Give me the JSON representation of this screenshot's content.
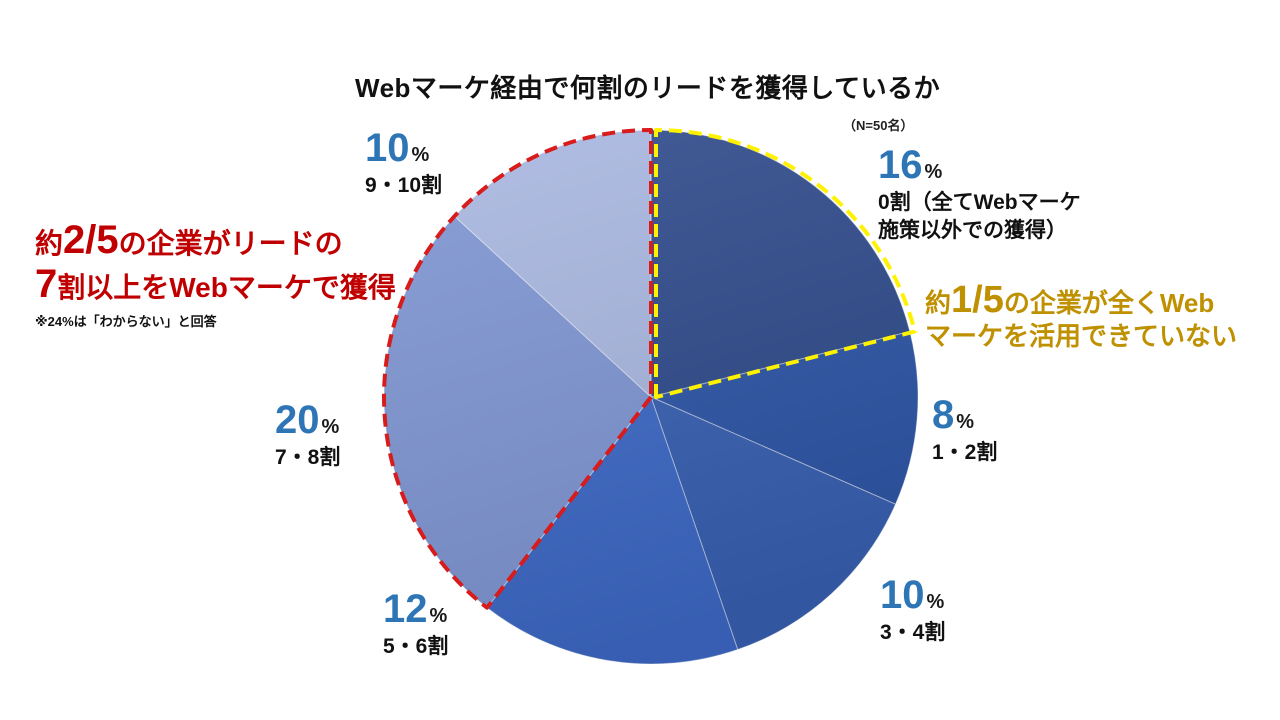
{
  "chart_data": {
    "type": "pie",
    "title": "Webマーケ経由で何割のリードを獲得しているか",
    "note": "（N=50名）",
    "unit": "%",
    "label_color": "#2E75B6",
    "slices": [
      {
        "label_lines": [
          "0割（全てWebマーケ",
          "施策以外での獲得）"
        ],
        "value": 16,
        "color": "#2F4B8C"
      },
      {
        "label_lines": [
          "1・2割"
        ],
        "value": 8,
        "color": "#2D55A6"
      },
      {
        "label_lines": [
          "3・4割"
        ],
        "value": 10,
        "color": "#3960B3"
      },
      {
        "label_lines": [
          "5・6割"
        ],
        "value": 12,
        "color": "#3D69C6"
      },
      {
        "label_lines": [
          "7・8割"
        ],
        "value": 20,
        "color": "#7F96D3"
      },
      {
        "label_lines": [
          "9・10割"
        ],
        "value": 10,
        "color": "#A9B7E0"
      }
    ],
    "highlights": [
      {
        "slices": [
          4,
          5
        ],
        "color": "#D81B1B"
      },
      {
        "slices": [
          0
        ],
        "color": "#FFF200"
      }
    ],
    "annotations": {
      "majority": {
        "color": "#C00000",
        "line1": {
          "pre": "約",
          "big": "2/5",
          "post": "の企業がリードの"
        },
        "line2": {
          "big": "7",
          "post": "割以上をWebマーケで獲得"
        },
        "footnote": "※24%は「わからない」と回答"
      },
      "none": {
        "color": "#BF9000",
        "line1": {
          "pre": "約",
          "big": "1/5",
          "post": "の企業が全くWeb"
        },
        "line2": "マーケを活用できていない"
      }
    }
  }
}
